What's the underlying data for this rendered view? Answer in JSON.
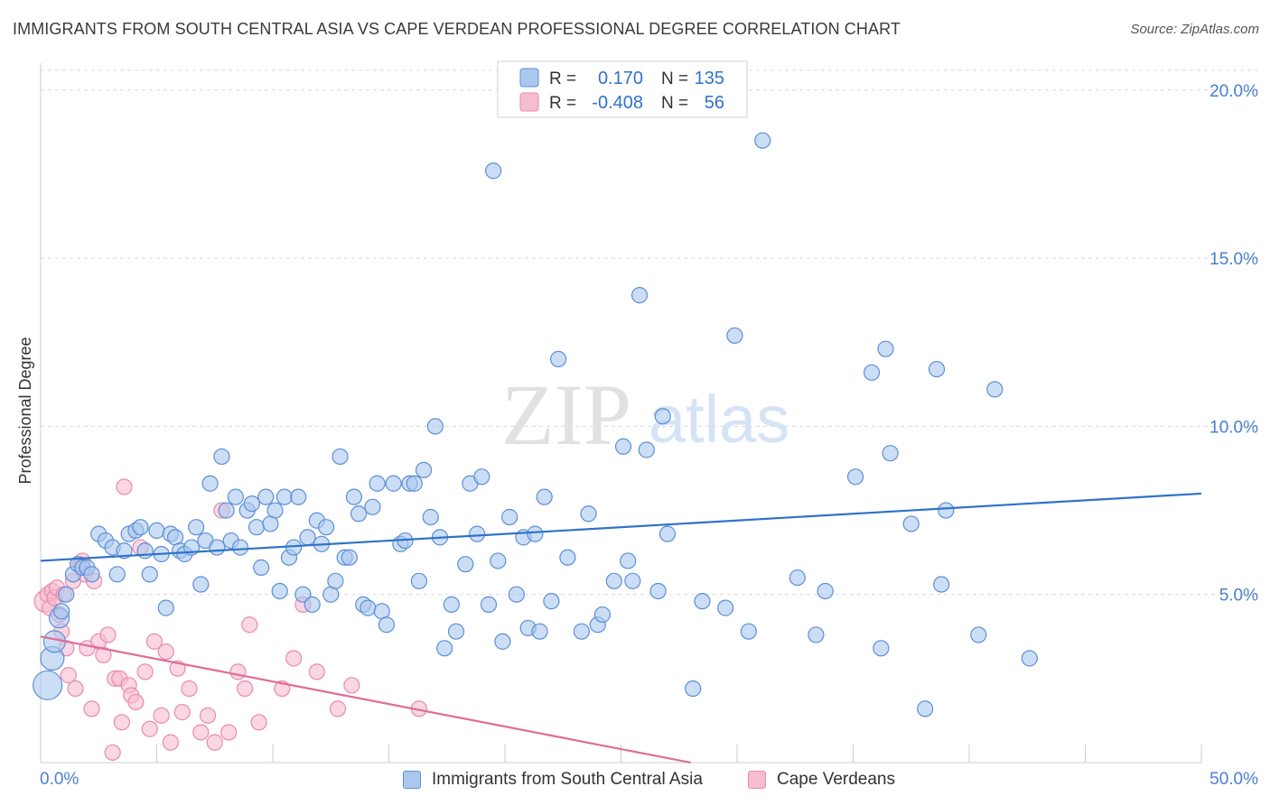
{
  "title": "IMMIGRANTS FROM SOUTH CENTRAL ASIA VS CAPE VERDEAN PROFESSIONAL DEGREE CORRELATION CHART",
  "source": "Source: ZipAtlas.com",
  "watermark": {
    "zip": "ZIP",
    "atlas": "atlas"
  },
  "colors": {
    "blue_fill": "#aac8ee",
    "blue_stroke": "#5b8fd6",
    "blue_line": "#2f72c9",
    "pink_fill": "#f6bcd0",
    "pink_stroke": "#e98aac",
    "pink_line": "#e06b97",
    "tick_label": "#4a7fd0",
    "grid": "#d8d8d8"
  },
  "legend_top": {
    "rows": [
      {
        "r_label": "R =",
        "r_value": "0.170",
        "n_label": "N =",
        "n_value": "135"
      },
      {
        "r_label": "R =",
        "r_value": "-0.408",
        "n_label": "N =",
        "n_value": "56"
      }
    ]
  },
  "legend_bottom": {
    "series1": "Immigrants from South Central Asia",
    "series2": "Cape Verdeans"
  },
  "chart_data": {
    "type": "scatter",
    "title": "IMMIGRANTS FROM SOUTH CENTRAL ASIA VS CAPE VERDEAN PROFESSIONAL DEGREE CORRELATION CHART",
    "xlabel": "",
    "ylabel": "Professional Degree",
    "xlim": [
      0,
      50
    ],
    "ylim": [
      0,
      20.8
    ],
    "x_tick_labels": [
      "0.0%",
      "50.0%"
    ],
    "y_ticks": [
      5,
      10,
      15,
      20
    ],
    "y_tick_labels": [
      "5.0%",
      "10.0%",
      "15.0%",
      "20.0%"
    ],
    "grid": true,
    "series": [
      {
        "name": "Immigrants from South Central Asia",
        "trend": [
          [
            0,
            6.0
          ],
          [
            50,
            8.0
          ]
        ],
        "points": [
          [
            0.3,
            2.3
          ],
          [
            0.5,
            3.1
          ],
          [
            0.6,
            3.6
          ],
          [
            0.8,
            4.3
          ],
          [
            0.9,
            4.5
          ],
          [
            1.1,
            5.0
          ],
          [
            1.4,
            5.6
          ],
          [
            1.6,
            5.9
          ],
          [
            1.8,
            5.8
          ],
          [
            2.0,
            5.8
          ],
          [
            2.2,
            5.6
          ],
          [
            2.5,
            6.8
          ],
          [
            2.8,
            6.6
          ],
          [
            3.1,
            6.4
          ],
          [
            3.3,
            5.6
          ],
          [
            3.6,
            6.3
          ],
          [
            3.8,
            6.8
          ],
          [
            4.1,
            6.9
          ],
          [
            4.3,
            7.0
          ],
          [
            4.5,
            6.3
          ],
          [
            4.7,
            5.6
          ],
          [
            5.0,
            6.9
          ],
          [
            5.2,
            6.2
          ],
          [
            5.4,
            4.6
          ],
          [
            5.6,
            6.8
          ],
          [
            5.8,
            6.7
          ],
          [
            6.0,
            6.3
          ],
          [
            6.2,
            6.2
          ],
          [
            6.5,
            6.4
          ],
          [
            6.7,
            7.0
          ],
          [
            6.9,
            5.3
          ],
          [
            7.1,
            6.6
          ],
          [
            7.3,
            8.3
          ],
          [
            7.6,
            6.4
          ],
          [
            7.8,
            9.1
          ],
          [
            8.0,
            7.5
          ],
          [
            8.2,
            6.6
          ],
          [
            8.4,
            7.9
          ],
          [
            8.6,
            6.4
          ],
          [
            8.9,
            7.5
          ],
          [
            9.1,
            7.7
          ],
          [
            9.3,
            7.0
          ],
          [
            9.5,
            5.8
          ],
          [
            9.7,
            7.9
          ],
          [
            9.9,
            7.1
          ],
          [
            10.1,
            7.5
          ],
          [
            10.3,
            5.1
          ],
          [
            10.5,
            7.9
          ],
          [
            10.7,
            6.1
          ],
          [
            10.9,
            6.4
          ],
          [
            11.1,
            7.9
          ],
          [
            11.3,
            5.0
          ],
          [
            11.5,
            6.7
          ],
          [
            11.7,
            4.7
          ],
          [
            11.9,
            7.2
          ],
          [
            12.1,
            6.5
          ],
          [
            12.3,
            7.0
          ],
          [
            12.5,
            5.0
          ],
          [
            12.7,
            5.4
          ],
          [
            12.9,
            9.1
          ],
          [
            13.1,
            6.1
          ],
          [
            13.3,
            6.1
          ],
          [
            13.5,
            7.9
          ],
          [
            13.7,
            7.4
          ],
          [
            13.9,
            4.7
          ],
          [
            14.1,
            4.6
          ],
          [
            14.3,
            7.6
          ],
          [
            14.5,
            8.3
          ],
          [
            14.7,
            4.5
          ],
          [
            14.9,
            4.1
          ],
          [
            15.2,
            8.3
          ],
          [
            15.5,
            6.5
          ],
          [
            15.7,
            6.6
          ],
          [
            15.9,
            8.3
          ],
          [
            16.1,
            8.3
          ],
          [
            16.3,
            5.4
          ],
          [
            16.5,
            8.7
          ],
          [
            16.8,
            7.3
          ],
          [
            17.0,
            10.0
          ],
          [
            17.2,
            6.7
          ],
          [
            17.4,
            3.4
          ],
          [
            17.7,
            4.7
          ],
          [
            17.9,
            3.9
          ],
          [
            18.3,
            5.9
          ],
          [
            18.5,
            8.3
          ],
          [
            18.8,
            6.8
          ],
          [
            19.0,
            8.5
          ],
          [
            19.3,
            4.7
          ],
          [
            19.5,
            17.6
          ],
          [
            19.7,
            6.0
          ],
          [
            19.9,
            3.6
          ],
          [
            20.2,
            7.3
          ],
          [
            20.5,
            5.0
          ],
          [
            20.8,
            6.7
          ],
          [
            21.0,
            4.0
          ],
          [
            21.3,
            6.8
          ],
          [
            21.5,
            3.9
          ],
          [
            21.7,
            7.9
          ],
          [
            22.0,
            4.8
          ],
          [
            22.3,
            12.0
          ],
          [
            22.7,
            6.1
          ],
          [
            23.3,
            3.9
          ],
          [
            23.6,
            7.4
          ],
          [
            24.0,
            4.1
          ],
          [
            24.2,
            4.4
          ],
          [
            24.7,
            5.4
          ],
          [
            25.1,
            9.4
          ],
          [
            25.3,
            6.0
          ],
          [
            25.5,
            5.4
          ],
          [
            25.8,
            13.9
          ],
          [
            26.1,
            9.3
          ],
          [
            26.6,
            5.1
          ],
          [
            26.8,
            10.3
          ],
          [
            27.0,
            6.8
          ],
          [
            28.1,
            2.2
          ],
          [
            28.5,
            4.8
          ],
          [
            29.5,
            4.6
          ],
          [
            29.9,
            12.7
          ],
          [
            30.5,
            3.9
          ],
          [
            31.1,
            18.5
          ],
          [
            32.6,
            5.5
          ],
          [
            33.4,
            3.8
          ],
          [
            33.8,
            5.1
          ],
          [
            35.1,
            8.5
          ],
          [
            35.8,
            11.6
          ],
          [
            36.2,
            3.4
          ],
          [
            36.4,
            12.3
          ],
          [
            36.6,
            9.2
          ],
          [
            37.5,
            7.1
          ],
          [
            38.1,
            1.6
          ],
          [
            38.6,
            11.7
          ],
          [
            38.8,
            5.3
          ],
          [
            39.0,
            7.5
          ],
          [
            40.4,
            3.8
          ],
          [
            41.1,
            11.1
          ],
          [
            42.6,
            3.1
          ]
        ]
      },
      {
        "name": "Cape Verdeans",
        "trend": [
          [
            0,
            3.75
          ],
          [
            28,
            0
          ]
        ],
        "points": [
          [
            0.2,
            4.8
          ],
          [
            0.3,
            5.0
          ],
          [
            0.4,
            4.6
          ],
          [
            0.5,
            5.1
          ],
          [
            0.6,
            4.9
          ],
          [
            0.7,
            5.2
          ],
          [
            0.8,
            4.4
          ],
          [
            0.9,
            3.9
          ],
          [
            1.0,
            5.0
          ],
          [
            1.1,
            3.4
          ],
          [
            1.2,
            2.6
          ],
          [
            1.4,
            5.4
          ],
          [
            1.5,
            2.2
          ],
          [
            1.7,
            5.9
          ],
          [
            1.8,
            6.0
          ],
          [
            1.9,
            5.6
          ],
          [
            2.0,
            3.4
          ],
          [
            2.2,
            1.6
          ],
          [
            2.3,
            5.4
          ],
          [
            2.5,
            3.6
          ],
          [
            2.7,
            3.2
          ],
          [
            2.9,
            3.8
          ],
          [
            3.1,
            0.3
          ],
          [
            3.2,
            2.5
          ],
          [
            3.4,
            2.5
          ],
          [
            3.5,
            1.2
          ],
          [
            3.6,
            8.2
          ],
          [
            3.8,
            2.3
          ],
          [
            3.9,
            2.0
          ],
          [
            4.1,
            1.8
          ],
          [
            4.3,
            6.4
          ],
          [
            4.5,
            2.7
          ],
          [
            4.7,
            1.0
          ],
          [
            4.9,
            3.6
          ],
          [
            5.2,
            1.4
          ],
          [
            5.4,
            3.3
          ],
          [
            5.6,
            0.6
          ],
          [
            5.9,
            2.8
          ],
          [
            6.1,
            1.5
          ],
          [
            6.4,
            2.2
          ],
          [
            6.9,
            0.9
          ],
          [
            7.2,
            1.4
          ],
          [
            7.5,
            0.6
          ],
          [
            7.8,
            7.5
          ],
          [
            8.1,
            0.9
          ],
          [
            8.5,
            2.7
          ],
          [
            8.8,
            2.2
          ],
          [
            9.0,
            4.1
          ],
          [
            9.4,
            1.2
          ],
          [
            10.4,
            2.2
          ],
          [
            10.9,
            3.1
          ],
          [
            11.3,
            4.7
          ],
          [
            11.9,
            2.7
          ],
          [
            12.8,
            1.6
          ],
          [
            13.4,
            2.3
          ],
          [
            16.3,
            1.6
          ]
        ]
      }
    ]
  }
}
